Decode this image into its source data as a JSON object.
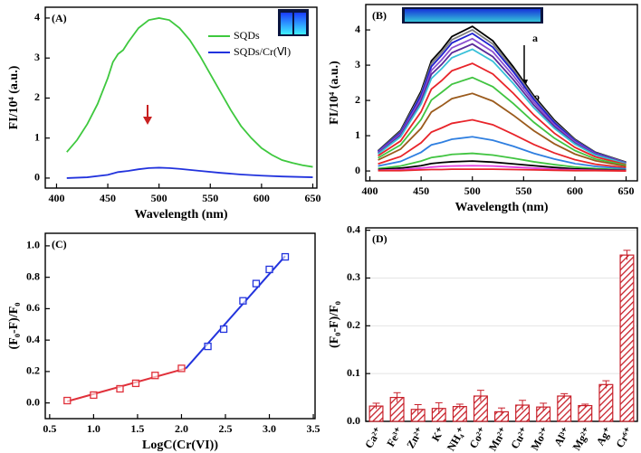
{
  "chart_data": [
    {
      "type": "line",
      "panel_label": "(A)",
      "xlabel": "Wavelength (nm)",
      "ylabel": "FI/10⁴ (a.u.)",
      "xlim": [
        389,
        654
      ],
      "xticks": [
        400,
        450,
        500,
        550,
        600,
        650
      ],
      "ylim": [
        -0.25,
        4.27
      ],
      "yticks": [
        0,
        1,
        2,
        3,
        4
      ],
      "legend": "upper right",
      "series": [
        {
          "name": "SQDs",
          "color": "#3ec83e",
          "x": [
            410,
            420,
            430,
            440,
            450,
            455,
            460,
            465,
            470,
            480,
            490,
            500,
            510,
            520,
            530,
            540,
            550,
            560,
            570,
            580,
            590,
            600,
            610,
            620,
            630,
            640,
            650
          ],
          "values": [
            0.65,
            0.95,
            1.35,
            1.85,
            2.5,
            2.9,
            3.1,
            3.2,
            3.4,
            3.75,
            3.95,
            4.0,
            3.95,
            3.75,
            3.45,
            3.05,
            2.6,
            2.15,
            1.7,
            1.3,
            1.0,
            0.75,
            0.58,
            0.45,
            0.38,
            0.32,
            0.28
          ]
        },
        {
          "name": "SQDs/Cr(Ⅵ)",
          "color": "#2233dd",
          "x": [
            410,
            430,
            450,
            460,
            470,
            480,
            490,
            500,
            510,
            520,
            540,
            560,
            580,
            600,
            620,
            650
          ],
          "values": [
            0.0,
            0.02,
            0.08,
            0.15,
            0.18,
            0.22,
            0.25,
            0.26,
            0.25,
            0.23,
            0.18,
            0.13,
            0.09,
            0.06,
            0.04,
            0.02
          ]
        }
      ]
    },
    {
      "type": "line",
      "panel_label": "(B)",
      "xlabel": "Wavelength (nm)",
      "ylabel": "FI/10⁴ (a.u.)",
      "annotations": [
        "a",
        "o"
      ],
      "xlim": [
        396,
        661
      ],
      "xticks": [
        400,
        450,
        500,
        550,
        600,
        650
      ],
      "ylim": [
        -0.28,
        4.72
      ],
      "yticks": [
        0,
        1,
        2,
        3,
        4
      ],
      "x": [
        408,
        430,
        450,
        460,
        470,
        480,
        500,
        520,
        540,
        560,
        580,
        600,
        620,
        650
      ],
      "series": [
        {
          "color": "#000000",
          "values": [
            0.57,
            1.15,
            2.26,
            3.12,
            3.44,
            3.81,
            4.1,
            3.69,
            2.95,
            2.13,
            1.44,
            0.9,
            0.53,
            0.25
          ]
        },
        {
          "color": "#7f7f7f",
          "values": [
            0.56,
            1.12,
            2.2,
            3.04,
            3.36,
            3.72,
            4.0,
            3.6,
            2.88,
            2.08,
            1.4,
            0.88,
            0.52,
            0.24
          ]
        },
        {
          "color": "#1f1fcf",
          "values": [
            0.55,
            1.09,
            2.15,
            2.96,
            3.28,
            3.63,
            3.9,
            3.51,
            2.81,
            2.03,
            1.37,
            0.86,
            0.51,
            0.23
          ]
        },
        {
          "color": "#8a4fd0",
          "values": [
            0.53,
            1.05,
            2.06,
            2.85,
            3.15,
            3.49,
            3.75,
            3.38,
            2.7,
            1.95,
            1.31,
            0.83,
            0.49,
            0.23
          ]
        },
        {
          "color": "#5b2a9a",
          "values": [
            0.5,
            1.01,
            1.98,
            2.74,
            3.02,
            3.35,
            3.6,
            3.24,
            2.59,
            1.87,
            1.26,
            0.79,
            0.47,
            0.22
          ]
        },
        {
          "color": "#38c0d8",
          "values": [
            0.48,
            0.97,
            1.9,
            2.62,
            2.9,
            3.21,
            3.45,
            3.11,
            2.48,
            1.79,
            1.21,
            0.76,
            0.45,
            0.21
          ]
        },
        {
          "color": "#e8242a",
          "values": [
            0.43,
            0.85,
            1.68,
            2.32,
            2.56,
            2.84,
            3.05,
            2.75,
            2.2,
            1.59,
            1.07,
            0.67,
            0.4,
            0.18
          ]
        },
        {
          "color": "#41c441",
          "values": [
            0.37,
            0.74,
            1.46,
            2.01,
            2.23,
            2.46,
            2.65,
            2.39,
            1.91,
            1.38,
            0.93,
            0.58,
            0.34,
            0.16
          ]
        },
        {
          "color": "#9b5b1d",
          "values": [
            0.31,
            0.62,
            1.21,
            1.67,
            1.85,
            2.05,
            2.2,
            1.98,
            1.58,
            1.14,
            0.77,
            0.48,
            0.29,
            0.13
          ]
        },
        {
          "color": "#e8242a",
          "values": [
            0.2,
            0.41,
            0.8,
            1.1,
            1.22,
            1.35,
            1.45,
            1.31,
            1.04,
            0.75,
            0.51,
            0.32,
            0.19,
            0.09
          ]
        },
        {
          "color": "#2f7fe0",
          "values": [
            0.14,
            0.27,
            0.53,
            0.74,
            0.81,
            0.9,
            0.97,
            0.87,
            0.7,
            0.5,
            0.34,
            0.21,
            0.13,
            0.06
          ]
        },
        {
          "color": "#41c441",
          "values": [
            0.07,
            0.14,
            0.28,
            0.38,
            0.42,
            0.47,
            0.5,
            0.45,
            0.36,
            0.26,
            0.18,
            0.11,
            0.07,
            0.03
          ]
        },
        {
          "color": "#000000",
          "values": [
            0.04,
            0.08,
            0.15,
            0.21,
            0.24,
            0.26,
            0.28,
            0.25,
            0.2,
            0.15,
            0.1,
            0.06,
            0.04,
            0.02
          ]
        },
        {
          "color": "#e040e0",
          "values": [
            0.02,
            0.04,
            0.08,
            0.11,
            0.13,
            0.14,
            0.15,
            0.14,
            0.11,
            0.08,
            0.05,
            0.03,
            0.02,
            0.01
          ]
        },
        {
          "color": "#e8242a",
          "values": [
            0.01,
            0.01,
            0.03,
            0.04,
            0.04,
            0.05,
            0.05,
            0.05,
            0.04,
            0.03,
            0.02,
            0.01,
            0.01,
            0
          ]
        }
      ]
    },
    {
      "type": "scatter",
      "panel_label": "(C)",
      "xlabel": "LogC(Cr(VI))",
      "ylabel": "(F₀-F)/F₀",
      "xlim": [
        0.45,
        3.52
      ],
      "xticks": [
        0.5,
        {
          "value": 1,
          "label": "1.0"
        },
        1.5,
        {
          "value": 2,
          "label": "2.0"
        },
        2.5,
        {
          "value": 3,
          "label": "3.0"
        },
        3.5
      ],
      "ylim": [
        -0.1,
        1.08
      ],
      "yticks": [
        {
          "value": 0,
          "label": "0.0"
        },
        0.2,
        0.4,
        0.6,
        0.8,
        {
          "value": 1,
          "label": "1.0"
        }
      ],
      "series": [
        {
          "color": "#e0303a",
          "x": [
            0.7,
            1.0,
            1.3,
            1.48,
            1.7,
            2.0
          ],
          "values": [
            0.015,
            0.05,
            0.09,
            0.125,
            0.175,
            0.22
          ]
        },
        {
          "color": "#2233dd",
          "x": [
            2.3,
            2.48,
            2.7,
            2.85,
            3.0,
            3.18
          ],
          "values": [
            0.36,
            0.47,
            0.65,
            0.76,
            0.85,
            0.93
          ]
        }
      ],
      "fits": [
        {
          "color": "#e0303a",
          "x": [
            0.7,
            2.05
          ],
          "values": [
            0.01,
            0.22
          ]
        },
        {
          "color": "#2233dd",
          "x": [
            2.05,
            3.18
          ],
          "values": [
            0.22,
            0.935
          ]
        }
      ]
    },
    {
      "type": "bar",
      "panel_label": "(D)",
      "ylabel": "(F₀-F)/F₀",
      "color": "#c8202a",
      "grid": true,
      "categories": [
        "Ca²⁺",
        "Fe³⁺",
        "Zn²⁺",
        "K⁺",
        "NH₄⁺",
        "Co²⁺",
        "Mn²⁺",
        "Cu²⁺",
        "Mo²⁺",
        "Al³⁺",
        "Mg²⁺",
        "Ag⁺",
        "Cr⁶⁺"
      ],
      "values": [
        0.032,
        0.05,
        0.025,
        0.027,
        0.031,
        0.053,
        0.02,
        0.034,
        0.03,
        0.053,
        0.033,
        0.077,
        0.348
      ],
      "errors": [
        0.006,
        0.01,
        0.01,
        0.012,
        0.005,
        0.012,
        0.008,
        0.01,
        0.008,
        0.005,
        0.003,
        0.008,
        0.01
      ],
      "ylim": [
        0,
        0.405
      ],
      "yticks": [
        {
          "value": 0,
          "label": "0.0"
        },
        0.1,
        0.2,
        0.3,
        0.4
      ]
    }
  ]
}
